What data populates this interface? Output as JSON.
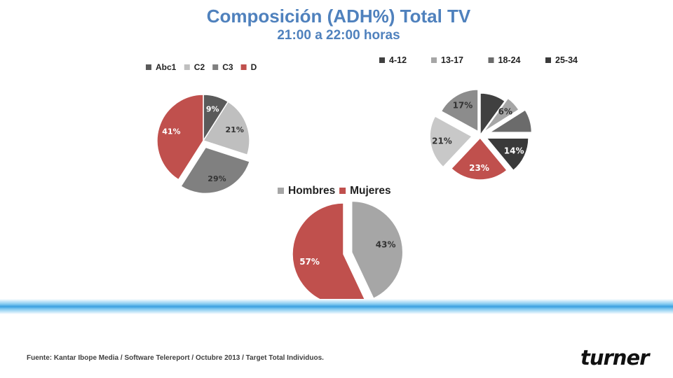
{
  "header": {
    "title": "Composición (ADH%) Total TV",
    "subtitle": "21:00 a 22:00 horas"
  },
  "footer": {
    "source": "Fuente: Kantar Ibope Media / Software Telereport / Octubre 2013 / Target Total Individuos."
  },
  "brand": {
    "logo_text": "turner"
  },
  "chart_data": [
    {
      "type": "pie",
      "id": "nse",
      "legend_position": "top",
      "slices": [
        {
          "label": "Abc1",
          "value": 9,
          "label_text": "9%",
          "color": "#5a5a5a"
        },
        {
          "label": "C2",
          "value": 21,
          "label_text": "21%",
          "color": "#bfbfbf"
        },
        {
          "label": "C3",
          "value": 29,
          "label_text": "29%",
          "color": "#808080"
        },
        {
          "label": "D",
          "value": 41,
          "label_text": "41%",
          "color": "#c0504d"
        }
      ]
    },
    {
      "type": "pie",
      "id": "edad",
      "legend_position": "top",
      "legend_entries": [
        "4-12",
        "13-17",
        "18-24",
        "25-34"
      ],
      "slices": [
        {
          "label": "4-12",
          "value": 10,
          "label_text": "",
          "color": "#404040"
        },
        {
          "label": "13-17",
          "value": 6,
          "label_text": "6%",
          "color": "#a6a6a6"
        },
        {
          "label": "18-24",
          "value": 9,
          "label_text": "",
          "color": "#6b6b6b"
        },
        {
          "label": "25-34",
          "value": 14,
          "label_text": "14%",
          "color": "#3a3a3a"
        },
        {
          "label": "",
          "value": 23,
          "label_text": "23%",
          "color": "#c0504d"
        },
        {
          "label": "",
          "value": 21,
          "label_text": "21%",
          "color": "#c8c8c8"
        },
        {
          "label": "",
          "value": 17,
          "label_text": "17%",
          "color": "#8c8c8c"
        }
      ]
    },
    {
      "type": "pie",
      "id": "sexo",
      "legend_position": "top",
      "slices": [
        {
          "label": "Hombres",
          "value": 43,
          "label_text": "43%",
          "color": "#a6a6a6"
        },
        {
          "label": "Mujeres",
          "value": 57,
          "label_text": "57%",
          "color": "#c0504d"
        }
      ]
    }
  ]
}
